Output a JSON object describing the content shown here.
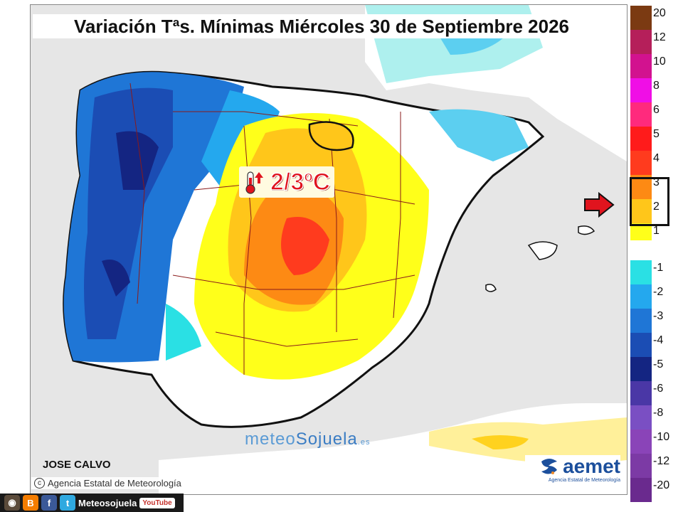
{
  "title": "Variación Tªs. Mínimas Miércoles 30 de Septiembre 2026",
  "callout": {
    "text": "2/3ºC",
    "icon": "thermometer-up-icon"
  },
  "author": "JOSE CALVO",
  "agency": "Agencia Estatal de Meteorología",
  "watermark": {
    "part1": "meteo",
    "part2": "Sojuela",
    "suffix": ".es"
  },
  "aemet_logo": {
    "name": "aemet",
    "subtitle": "Agencia Estatal de Meteorología"
  },
  "social": {
    "handle": "Meteosojuela",
    "youtube": "YouTube"
  },
  "legend": {
    "highlighted_range": [
      "2",
      "3"
    ],
    "items": [
      {
        "label": "20",
        "color": "#7b3a12"
      },
      {
        "label": "12",
        "color": "#b51f5a"
      },
      {
        "label": "10",
        "color": "#d2128f"
      },
      {
        "label": "8",
        "color": "#f00ee6"
      },
      {
        "label": "6",
        "color": "#ff2a7d"
      },
      {
        "label": "5",
        "color": "#ff1b1b"
      },
      {
        "label": "4",
        "color": "#ff3b1e"
      },
      {
        "label": "3",
        "color": "#fd8a14"
      },
      {
        "label": "2",
        "color": "#ffc61a"
      },
      {
        "label": "1",
        "color": "#ffff1a"
      },
      {
        "label": "-1",
        "color": "#2ae0e4"
      },
      {
        "label": "-2",
        "color": "#24a8ee"
      },
      {
        "label": "-3",
        "color": "#1f76d6"
      },
      {
        "label": "-4",
        "color": "#1b4db4"
      },
      {
        "label": "-5",
        "color": "#142582"
      },
      {
        "label": "-6",
        "color": "#4a37a6"
      },
      {
        "label": "-8",
        "color": "#7a4fc3"
      },
      {
        "label": "-10",
        "color": "#8a44b8"
      },
      {
        "label": "-12",
        "color": "#7c3aa5"
      },
      {
        "label": "-20",
        "color": "#6a2a8e"
      }
    ]
  }
}
